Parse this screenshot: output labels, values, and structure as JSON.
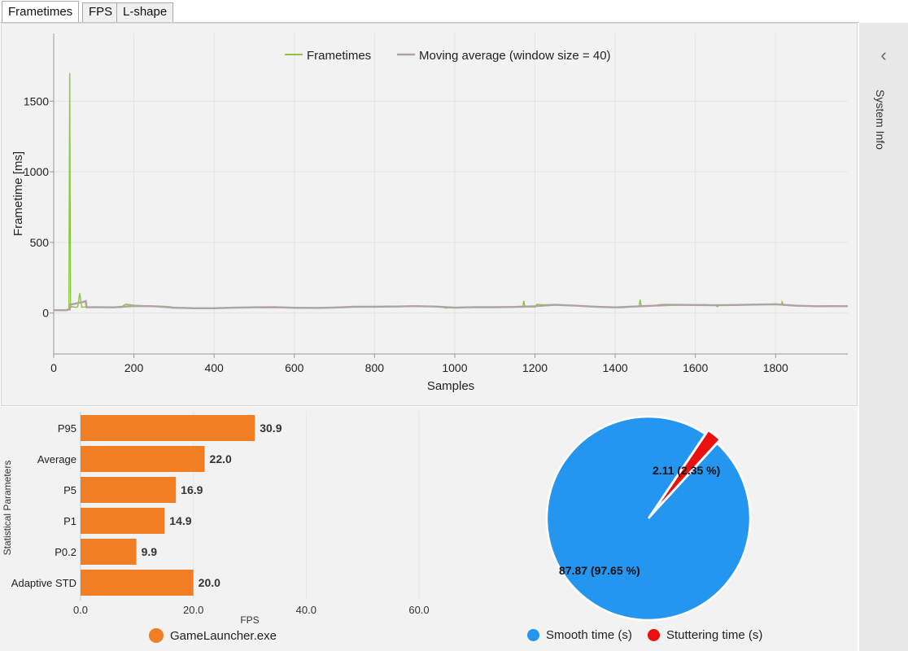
{
  "tabs": [
    {
      "label": "Frametimes",
      "active": true
    },
    {
      "label": "FPS",
      "active": false
    },
    {
      "label": "L-shape",
      "active": false
    }
  ],
  "sidebar": {
    "label": "System Info",
    "icon": "chevron-left-icon"
  },
  "frametime_chart": {
    "type": "line",
    "xlabel": "Samples",
    "ylabel": "Frametime [ms]",
    "xlim": [
      0,
      1980
    ],
    "ylim": [
      -290,
      1980
    ],
    "xticks": [
      0,
      200,
      400,
      600,
      800,
      1000,
      1200,
      1400,
      1600,
      1800
    ],
    "yticks": [
      0,
      500,
      1000,
      1500
    ],
    "legend": {
      "frametimes": "Frametimes",
      "average": "Moving average (window size = 40)"
    },
    "colors": {
      "frametimes": "#8cc63f",
      "average": "#b2a3a3"
    },
    "frametimes": [
      [
        0,
        20
      ],
      [
        30,
        20
      ],
      [
        38,
        30
      ],
      [
        40,
        1700
      ],
      [
        42,
        40
      ],
      [
        46,
        45
      ],
      [
        55,
        40
      ],
      [
        60,
        45
      ],
      [
        65,
        140
      ],
      [
        70,
        40
      ],
      [
        80,
        45
      ],
      [
        100,
        42
      ],
      [
        130,
        40
      ],
      [
        170,
        40
      ],
      [
        175,
        55
      ],
      [
        180,
        62
      ],
      [
        200,
        55
      ],
      [
        230,
        50
      ],
      [
        250,
        45
      ],
      [
        270,
        48
      ],
      [
        290,
        45
      ],
      [
        295,
        35
      ],
      [
        340,
        35
      ],
      [
        360,
        32
      ],
      [
        400,
        33
      ],
      [
        450,
        38
      ],
      [
        500,
        40
      ],
      [
        550,
        42
      ],
      [
        590,
        38
      ],
      [
        600,
        35
      ],
      [
        650,
        35
      ],
      [
        700,
        38
      ],
      [
        720,
        42
      ],
      [
        760,
        45
      ],
      [
        800,
        42
      ],
      [
        830,
        48
      ],
      [
        860,
        45
      ],
      [
        900,
        50
      ],
      [
        940,
        48
      ],
      [
        970,
        45
      ],
      [
        975,
        35
      ],
      [
        1000,
        38
      ],
      [
        1020,
        40
      ],
      [
        1050,
        42
      ],
      [
        1100,
        40
      ],
      [
        1150,
        45
      ],
      [
        1170,
        45
      ],
      [
        1172,
        85
      ],
      [
        1175,
        45
      ],
      [
        1200,
        42
      ],
      [
        1205,
        62
      ],
      [
        1220,
        58
      ],
      [
        1240,
        60
      ],
      [
        1260,
        58
      ],
      [
        1300,
        52
      ],
      [
        1340,
        48
      ],
      [
        1380,
        40
      ],
      [
        1420,
        38
      ],
      [
        1450,
        48
      ],
      [
        1460,
        50
      ],
      [
        1462,
        95
      ],
      [
        1465,
        50
      ],
      [
        1500,
        52
      ],
      [
        1510,
        60
      ],
      [
        1530,
        62
      ],
      [
        1550,
        60
      ],
      [
        1580,
        55
      ],
      [
        1620,
        60
      ],
      [
        1650,
        55
      ],
      [
        1655,
        45
      ],
      [
        1660,
        58
      ],
      [
        1700,
        55
      ],
      [
        1750,
        60
      ],
      [
        1780,
        62
      ],
      [
        1800,
        65
      ],
      [
        1815,
        62
      ],
      [
        1816,
        80
      ],
      [
        1820,
        55
      ],
      [
        1850,
        50
      ],
      [
        1900,
        48
      ],
      [
        1950,
        50
      ],
      [
        1980,
        48
      ]
    ],
    "moving_average": [
      [
        0,
        20
      ],
      [
        30,
        20
      ],
      [
        40,
        25
      ],
      [
        42,
        60
      ],
      [
        60,
        70
      ],
      [
        75,
        80
      ],
      [
        80,
        85
      ],
      [
        82,
        40
      ],
      [
        100,
        42
      ],
      [
        150,
        40
      ],
      [
        200,
        50
      ],
      [
        250,
        48
      ],
      [
        300,
        38
      ],
      [
        350,
        34
      ],
      [
        400,
        34
      ],
      [
        450,
        38
      ],
      [
        500,
        40
      ],
      [
        550,
        41
      ],
      [
        600,
        37
      ],
      [
        650,
        36
      ],
      [
        700,
        39
      ],
      [
        750,
        44
      ],
      [
        800,
        45
      ],
      [
        850,
        46
      ],
      [
        900,
        49
      ],
      [
        950,
        46
      ],
      [
        1000,
        38
      ],
      [
        1050,
        42
      ],
      [
        1100,
        41
      ],
      [
        1150,
        43
      ],
      [
        1200,
        48
      ],
      [
        1250,
        58
      ],
      [
        1300,
        52
      ],
      [
        1350,
        45
      ],
      [
        1400,
        40
      ],
      [
        1450,
        46
      ],
      [
        1500,
        52
      ],
      [
        1550,
        58
      ],
      [
        1600,
        57
      ],
      [
        1650,
        55
      ],
      [
        1700,
        57
      ],
      [
        1750,
        60
      ],
      [
        1800,
        62
      ],
      [
        1850,
        52
      ],
      [
        1900,
        48
      ],
      [
        1950,
        49
      ],
      [
        1980,
        48
      ]
    ]
  },
  "bar_chart": {
    "type": "bar",
    "orientation": "horizontal",
    "ylabel": "Statistical Parameters",
    "xlabel": "FPS",
    "xlim": [
      0,
      60
    ],
    "xticks": [
      "0.0",
      "20.0",
      "40.0",
      "60.0"
    ],
    "categories": [
      "P95",
      "Average",
      "P5",
      "P1",
      "P0.2",
      "Adaptive STD"
    ],
    "values": [
      30.9,
      22.0,
      16.9,
      14.9,
      9.9,
      20.0
    ],
    "value_labels": [
      "30.9",
      "22.0",
      "16.9",
      "14.9",
      "9.9",
      "20.0"
    ],
    "legend": "GameLauncher.exe",
    "color": "#f17e22"
  },
  "pie_chart": {
    "type": "pie",
    "slices": [
      {
        "name": "Smooth time (s)",
        "value": 87.87,
        "label": "87.87 (97.65 %)",
        "color": "#2496f0"
      },
      {
        "name": "Stuttering time (s)",
        "value": 2.11,
        "label": "2.11 (2.35 %)",
        "color": "#ea1010"
      }
    ]
  }
}
